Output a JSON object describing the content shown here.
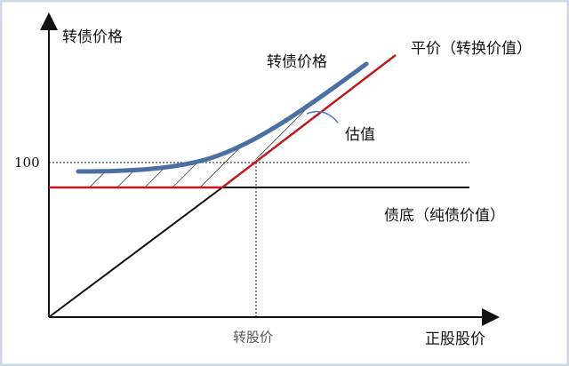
{
  "labels": {
    "y_axis": "转债价格",
    "curve": "转债价格",
    "parity": "平价（转换价值）",
    "valuation": "估值",
    "par_value": "100",
    "bond_floor": "债底（纯债价值）",
    "conversion_price": "转股价",
    "x_axis": "正股股价"
  }
}
